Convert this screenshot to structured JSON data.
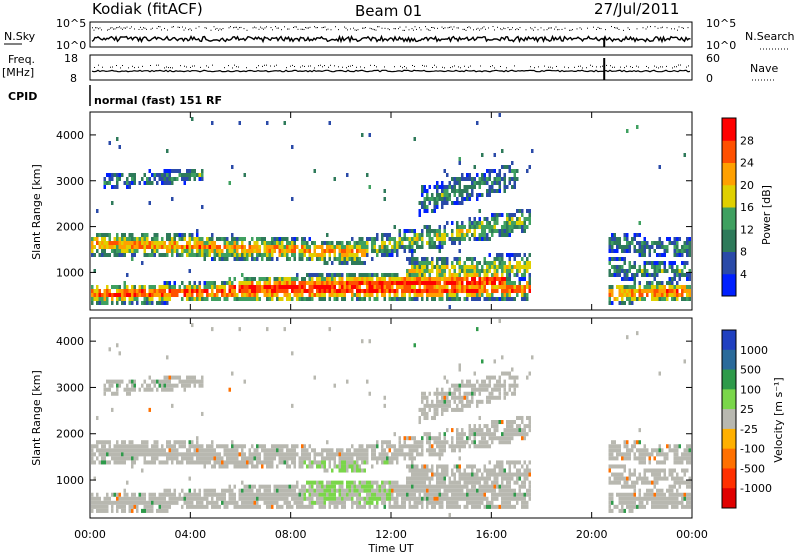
{
  "header": {
    "station": "Kodiak (fitACF)",
    "beam": "Beam 01",
    "date": "27/Jul/2011"
  },
  "side_labels": {
    "nsky": "N.Sky",
    "nsearch": "N.Search",
    "freq": "Freq.",
    "freq_unit": "[MHz]",
    "nave": "Nave",
    "cpid": "CPID",
    "cpid_value": "normal (fast) 151 RF"
  },
  "noise_axis": {
    "left_ticks": [
      "10^5",
      "10^0"
    ],
    "right_ticks": [
      "10^5",
      "10^0"
    ]
  },
  "freq_axis": {
    "left_ticks": [
      "18",
      "8"
    ],
    "right_ticks": [
      "60",
      "0"
    ]
  },
  "colors": {
    "power_scale": [
      "#0020ff",
      "#2a4aa8",
      "#2e7a5a",
      "#3fa060",
      "#e0d000",
      "#ffa000",
      "#ff5000",
      "#ff0000"
    ],
    "velocity_scale": [
      "#2040c0",
      "#2a6a9a",
      "#2e9a4a",
      "#7ad64a",
      "#b8b8b0",
      "#ffb000",
      "#ff7000",
      "#ff3000",
      "#e00000"
    ]
  },
  "chart_data": [
    {
      "type": "heatmap",
      "name": "power",
      "xlabel": "Time UT",
      "ylabel": "Slant Range [km]",
      "x_ticks": [
        "00:00",
        "04:00",
        "08:00",
        "12:00",
        "16:00",
        "20:00",
        "00:00"
      ],
      "xlim": [
        0,
        24
      ],
      "y_ticks": [
        1000,
        2000,
        3000,
        4000
      ],
      "ylim": [
        180,
        4500
      ],
      "colorbar": {
        "label": "Power [dB]",
        "ticks": [
          4,
          8,
          12,
          16,
          20,
          24,
          28
        ],
        "range": [
          0,
          32
        ]
      },
      "data_gap_hours": [
        17.6,
        20.6
      ]
    },
    {
      "type": "heatmap",
      "name": "velocity",
      "xlabel": "Time UT",
      "ylabel": "Slant Range [km]",
      "x_ticks": [
        "00:00",
        "04:00",
        "08:00",
        "12:00",
        "16:00",
        "20:00",
        "00:00"
      ],
      "xlim": [
        0,
        24
      ],
      "y_ticks": [
        1000,
        2000,
        3000,
        4000
      ],
      "ylim": [
        180,
        4500
      ],
      "colorbar": {
        "label": "Velocity [m s⁻¹]",
        "ticks": [
          "1000",
          "500",
          "100",
          "25",
          "-25",
          "-100",
          "-500",
          "-1000"
        ]
      },
      "data_gap_hours": [
        17.6,
        20.6
      ]
    }
  ]
}
